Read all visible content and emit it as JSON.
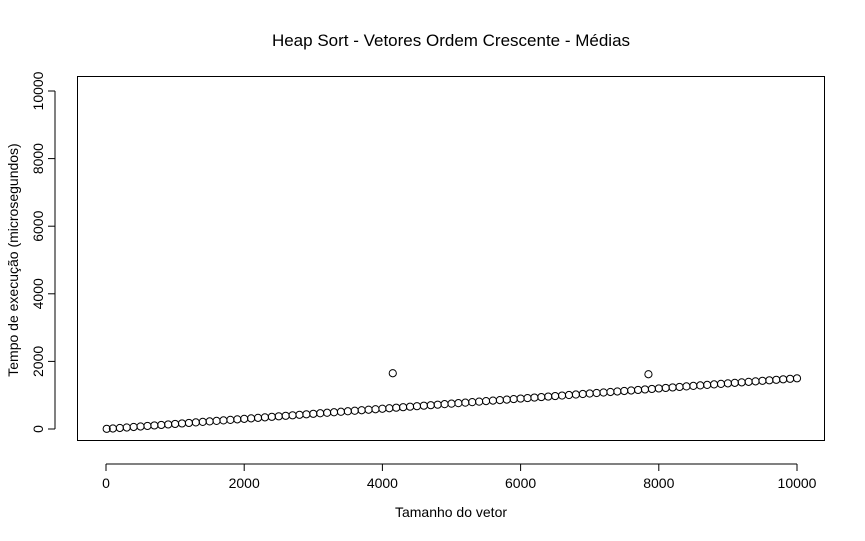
{
  "chart_data": {
    "type": "scatter",
    "title": "Heap Sort - Vetores Ordem Crescente - Médias",
    "xlabel": "Tamanho do vetor",
    "ylabel": "Tempo de execução (microsegundos)",
    "xlim": [
      0,
      10000
    ],
    "ylim": [
      0,
      10000
    ],
    "x_ticks": [
      0,
      2000,
      4000,
      6000,
      8000,
      10000
    ],
    "y_ticks": [
      0,
      2000,
      4000,
      6000,
      8000,
      10000
    ],
    "x_tick_labels": [
      "0",
      "2000",
      "4000",
      "6000",
      "8000",
      "10000"
    ],
    "y_tick_labels": [
      "0",
      "2000",
      "4000",
      "6000",
      "8000",
      "10000"
    ],
    "grid": false,
    "legend": "none",
    "marker": "open-circle",
    "series": [
      {
        "x": [
          10,
          100,
          200,
          300,
          400,
          500,
          600,
          700,
          800,
          900,
          1000,
          1100,
          1200,
          1300,
          1400,
          1500,
          1600,
          1700,
          1800,
          1900,
          2000,
          2100,
          2200,
          2300,
          2400,
          2500,
          2600,
          2700,
          2800,
          2900,
          3000,
          3100,
          3200,
          3300,
          3400,
          3500,
          3600,
          3700,
          3800,
          3900,
          4000,
          4100,
          4150,
          4200,
          4300,
          4400,
          4500,
          4600,
          4700,
          4800,
          4900,
          5000,
          5100,
          5200,
          5300,
          5400,
          5500,
          5600,
          5700,
          5800,
          5900,
          6000,
          6100,
          6200,
          6300,
          6400,
          6500,
          6600,
          6700,
          6800,
          6900,
          7000,
          7100,
          7200,
          7300,
          7400,
          7500,
          7600,
          7700,
          7800,
          7850,
          7900,
          8000,
          8100,
          8200,
          8300,
          8400,
          8500,
          8600,
          8700,
          8800,
          8900,
          9000,
          9100,
          9200,
          9300,
          9400,
          9500,
          9600,
          9700,
          9800,
          9900,
          10000
        ],
        "y": [
          5,
          15,
          30,
          45,
          60,
          75,
          90,
          105,
          120,
          135,
          150,
          165,
          180,
          195,
          210,
          225,
          240,
          255,
          270,
          285,
          300,
          315,
          330,
          345,
          360,
          375,
          390,
          405,
          420,
          435,
          450,
          465,
          480,
          495,
          510,
          525,
          540,
          555,
          570,
          585,
          600,
          615,
          1650,
          630,
          645,
          660,
          675,
          690,
          705,
          720,
          735,
          750,
          765,
          780,
          795,
          810,
          825,
          840,
          855,
          870,
          885,
          900,
          915,
          930,
          945,
          960,
          975,
          990,
          1005,
          1020,
          1035,
          1050,
          1065,
          1080,
          1095,
          1110,
          1125,
          1140,
          1155,
          1170,
          1620,
          1185,
          1200,
          1215,
          1230,
          1245,
          1260,
          1275,
          1290,
          1305,
          1320,
          1335,
          1350,
          1365,
          1380,
          1395,
          1410,
          1425,
          1440,
          1455,
          1470,
          1485,
          1500
        ]
      }
    ]
  }
}
